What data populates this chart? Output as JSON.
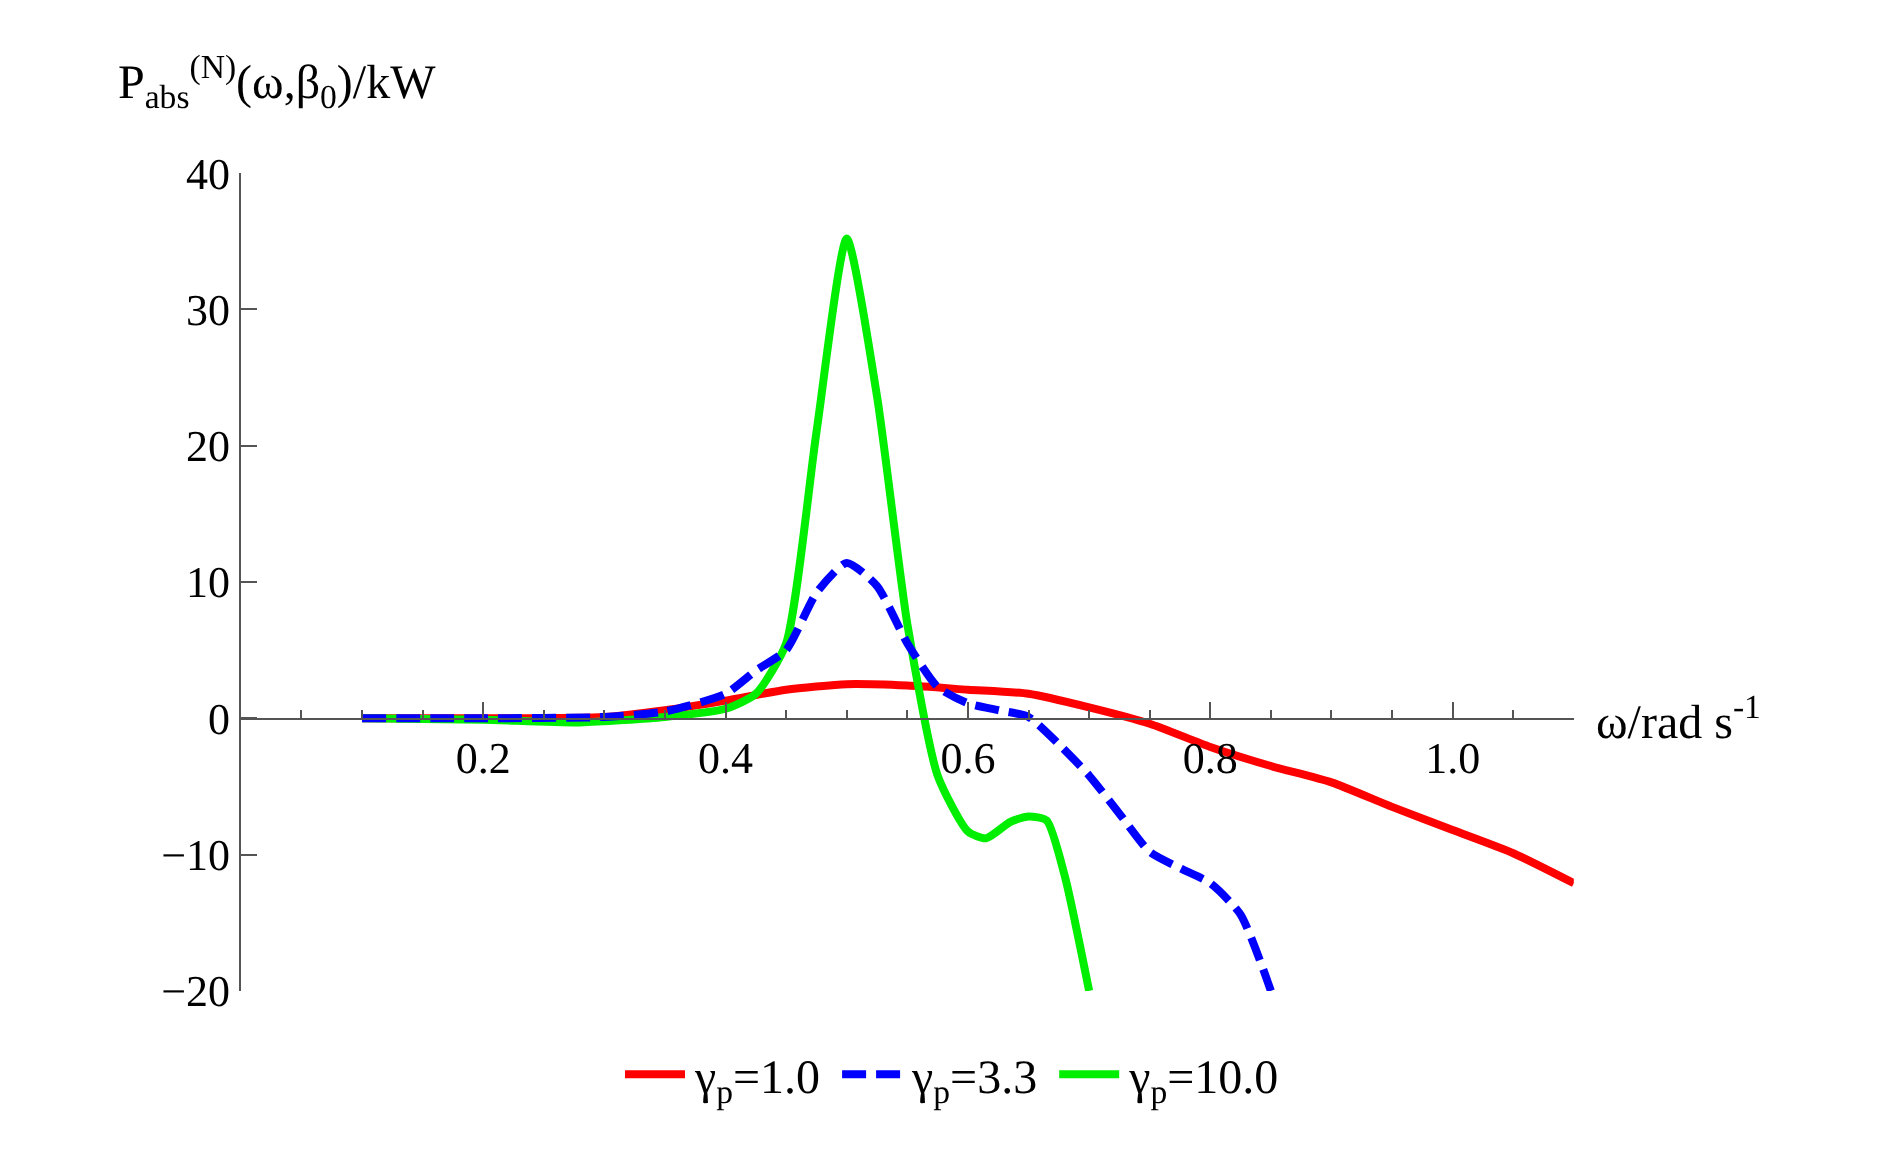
{
  "chart_data": {
    "type": "line",
    "ylabel": "P$_{abs}$$^{(N)}$(ω,β$_{0}$)/kW",
    "xlabel": "ω/rad s$^{-1}$",
    "xlim": [
      0,
      1.1
    ],
    "xticks": [
      {
        "value": 0.2,
        "label": "0.2"
      },
      {
        "value": 0.4,
        "label": "0.4"
      },
      {
        "value": 0.6,
        "label": "0.6"
      },
      {
        "value": 0.8,
        "label": "0.8"
      },
      {
        "value": 1.0,
        "label": "1.0"
      }
    ],
    "ylim": [
      -20,
      40
    ],
    "yticks": [
      {
        "value": -20,
        "label": "−20"
      },
      {
        "value": -10,
        "label": "−10"
      },
      0,
      10,
      20,
      30,
      40
    ],
    "legend": "bottom",
    "series": [
      {
        "name": "γ$_{p}$=1.0",
        "color": "#ff0000",
        "line_style": "solid",
        "x": [
          0.1,
          0.2,
          0.3,
          0.35,
          0.4,
          0.45,
          0.5,
          0.55,
          0.6,
          0.65,
          0.7,
          0.75,
          0.8,
          0.85,
          0.9,
          0.95,
          1.0,
          1.05,
          1.1
        ],
        "values": [
          0,
          0,
          0.1,
          0.6,
          1.3,
          2.1,
          2.5,
          2.4,
          2.1,
          1.8,
          0.8,
          -0.4,
          -2.1,
          -3.5,
          -4.7,
          -6.5,
          -8.2,
          -9.9,
          -12.1
        ]
      },
      {
        "name": "γ$_{p}$=3.3",
        "color": "#0000ff",
        "line_style": "dashed",
        "x": [
          0.1,
          0.2,
          0.3,
          0.35,
          0.4,
          0.425,
          0.45,
          0.475,
          0.5,
          0.525,
          0.55,
          0.575,
          0.6,
          0.625,
          0.65,
          0.675,
          0.7,
          0.725,
          0.75,
          0.775,
          0.8,
          0.825,
          0.85
        ],
        "values": [
          0,
          0,
          0.1,
          0.5,
          1.8,
          3.5,
          5.0,
          9.2,
          11.4,
          9.7,
          5.5,
          2.3,
          1.1,
          0.6,
          0.1,
          -1.9,
          -4.2,
          -7.0,
          -9.8,
          -11.0,
          -12.1,
          -14.4,
          -20
        ]
      },
      {
        "name": "γ$_{p}$=10.0",
        "color": "#00ee00",
        "line_style": "solid",
        "x": [
          0.1,
          0.2,
          0.28,
          0.35,
          0.4,
          0.425,
          0.45,
          0.475,
          0.5,
          0.525,
          0.55,
          0.575,
          0.6,
          0.615,
          0.635,
          0.65,
          0.665,
          0.68,
          0.7
        ],
        "values": [
          0,
          -0.1,
          -0.3,
          0.1,
          0.7,
          1.8,
          5.5,
          21,
          35.2,
          23.6,
          6.9,
          -4.2,
          -8.3,
          -8.8,
          -7.6,
          -7.2,
          -7.5,
          -11.6,
          -20
        ]
      }
    ]
  }
}
